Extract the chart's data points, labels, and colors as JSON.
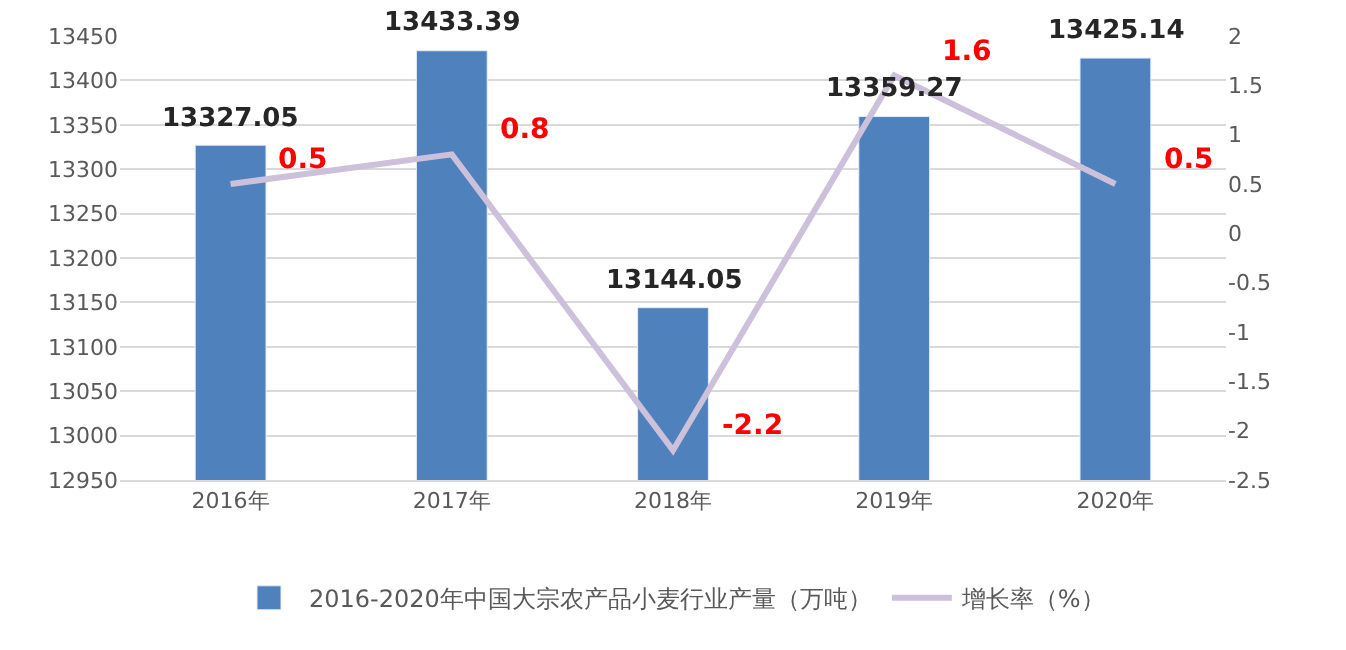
{
  "chart_data": {
    "type": "bar",
    "categories": [
      "2016年",
      "2017年",
      "2018年",
      "2019年",
      "2020年"
    ],
    "series": [
      {
        "name": "2016-2020年中国大宗农产品小麦行业产量（万吨）",
        "color": "#4f81bd",
        "values": [
          13327.05,
          13433.39,
          13144.05,
          13359.27,
          13425.14
        ]
      },
      {
        "name": "增长率（%）",
        "color": "#ccc0da",
        "type": "line",
        "axis": "y2",
        "marker": "none",
        "values": [
          0.5,
          0.8,
          -2.2,
          1.6,
          0.5
        ]
      }
    ],
    "ylim": [
      12950,
      13450
    ],
    "yticks": [
      12950,
      13000,
      13050,
      13100,
      13150,
      13200,
      13250,
      13300,
      13350,
      13400,
      13450
    ],
    "y2lim": [
      -2.5,
      2
    ],
    "y2ticks": [
      -2.5,
      -2,
      -1.5,
      -1,
      -0.5,
      0,
      0.5,
      1,
      1.5,
      2
    ],
    "grid": "y",
    "legend": "bottom",
    "data_labels": true
  }
}
